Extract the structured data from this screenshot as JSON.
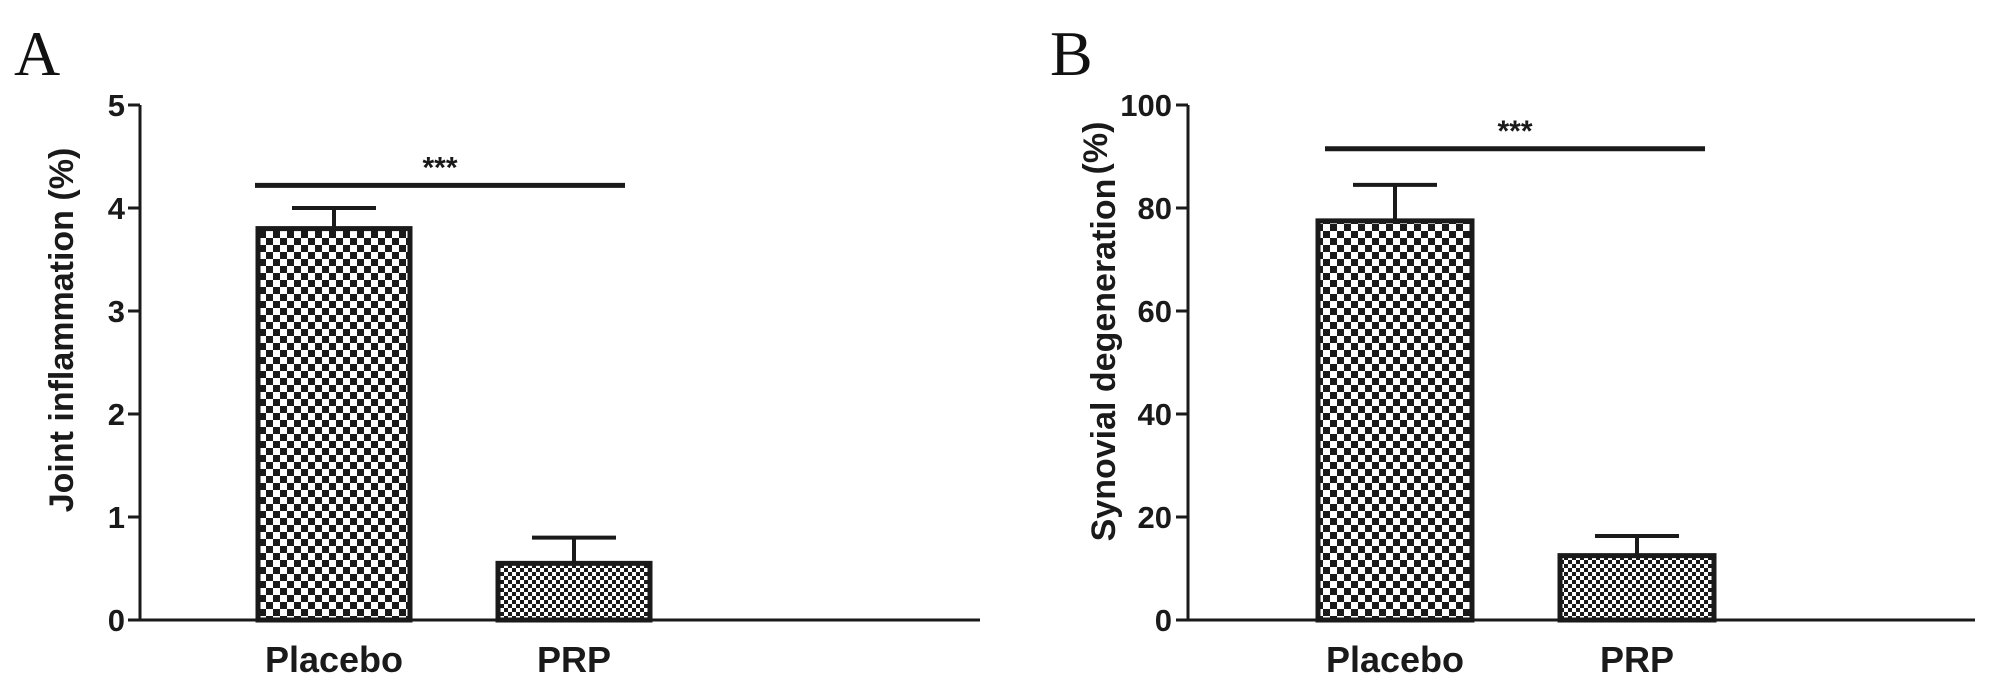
{
  "chart_data": [
    {
      "type": "bar",
      "panel": "A",
      "categories": [
        "Placebo",
        "PRP"
      ],
      "values": [
        3.8,
        0.55
      ],
      "errors": [
        0.2,
        0.25
      ],
      "patterns": [
        "checker-coarse",
        "checker-fine"
      ],
      "ylabel": "Joint inflammation (%)",
      "ylim": [
        0,
        5
      ],
      "yticks": [
        "0",
        "1",
        "2",
        "3",
        "4",
        "5"
      ],
      "significance": {
        "label": "***",
        "y": 4.22
      },
      "grid": false,
      "legend": "none"
    },
    {
      "type": "bar",
      "panel": "B",
      "categories": [
        "Placebo",
        "PRP"
      ],
      "values": [
        77.5,
        12.5
      ],
      "errors": [
        7,
        3.8
      ],
      "patterns": [
        "checker-coarse",
        "checker-fine"
      ],
      "ylabel_lines": [
        "Synovial degeneration",
        "(%)"
      ],
      "ylim": [
        0,
        100
      ],
      "yticks": [
        "0",
        "20",
        "40",
        "60",
        "80",
        "100"
      ],
      "significance": {
        "label": "***",
        "y": 91.5
      },
      "grid": false,
      "legend": "none"
    }
  ],
  "colors": {
    "ink": "#1a1a1a",
    "fill": "#ffffff"
  }
}
